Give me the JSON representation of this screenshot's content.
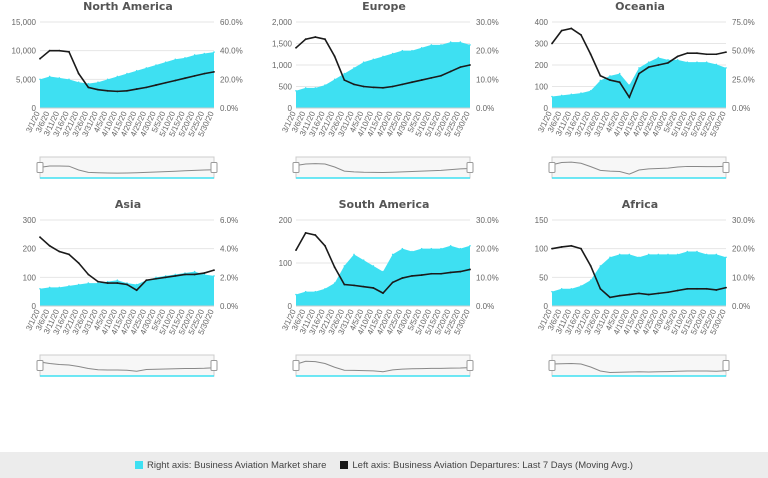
{
  "colors": {
    "share": "#3ee0f2",
    "departures": "#1a1a1a",
    "grid": "#e6e6e6",
    "axis": "#cccccc"
  },
  "legend": {
    "share_label": "Right axis: Business Aviation Market share",
    "departures_label": "Left axis: Business Aviation Departures: Last 7 Days (Moving Avg.)"
  },
  "chart_data": [
    {
      "type": "area",
      "title": "North America",
      "x_labels": [
        "3/1/20",
        "3/6/20",
        "3/11/20",
        "3/16/20",
        "3/21/20",
        "3/26/20",
        "3/31/20",
        "4/5/20",
        "4/10/20",
        "4/15/20",
        "4/20/20",
        "4/25/20",
        "4/30/20",
        "5/5/20",
        "5/10/20",
        "5/15/20",
        "5/20/20",
        "5/25/20",
        "5/30/20"
      ],
      "left_ticks": [
        "15,000",
        "10,000",
        "5,000",
        "0"
      ],
      "right_ticks": [
        "60.0%",
        "40.0%",
        "20.0%",
        "0.0%"
      ],
      "ylim_left": [
        0,
        15000
      ],
      "ylim_right": [
        0,
        60
      ],
      "series": [
        {
          "name": "Business Aviation Departures: Last 7 Days (Moving Avg.)",
          "axis": "left",
          "x": [
            "3/1/20",
            "3/6/20",
            "3/11/20",
            "3/16/20",
            "3/21/20",
            "3/26/20",
            "3/31/20",
            "4/5/20",
            "4/10/20",
            "4/15/20",
            "4/20/20",
            "4/25/20",
            "4/30/20",
            "5/5/20",
            "5/10/20",
            "5/15/20",
            "5/20/20",
            "5/25/20",
            "5/30/20"
          ],
          "values": [
            8600,
            10000,
            10000,
            9800,
            6000,
            3600,
            3200,
            3000,
            2900,
            3000,
            3300,
            3600,
            4000,
            4400,
            4800,
            5200,
            5600,
            6000,
            6300
          ]
        },
        {
          "name": "Business Aviation Market share",
          "axis": "right",
          "x": [
            "3/1/20",
            "3/6/20",
            "3/11/20",
            "3/16/20",
            "3/21/20",
            "3/26/20",
            "3/31/20",
            "4/5/20",
            "4/10/20",
            "4/15/20",
            "4/20/20",
            "4/25/20",
            "4/30/20",
            "5/5/20",
            "5/10/20",
            "5/15/20",
            "5/20/20",
            "5/25/20",
            "5/30/20"
          ],
          "values": [
            20,
            22,
            21,
            20,
            18,
            17,
            18,
            20,
            22,
            24,
            26,
            28,
            30,
            32,
            34,
            35,
            37,
            38,
            39
          ]
        }
      ]
    },
    {
      "type": "area",
      "title": "Europe",
      "x_labels": [
        "3/1/20",
        "3/6/20",
        "3/11/20",
        "3/16/20",
        "3/21/20",
        "3/26/20",
        "3/31/20",
        "4/5/20",
        "4/10/20",
        "4/15/20",
        "4/20/20",
        "4/25/20",
        "4/30/20",
        "5/5/20",
        "5/10/20",
        "5/15/20",
        "5/20/20",
        "5/25/20",
        "5/30/20"
      ],
      "left_ticks": [
        "2,000",
        "1,500",
        "1,000",
        "500",
        "0"
      ],
      "right_ticks": [
        "30.0%",
        "20.0%",
        "10.0%",
        "0.0%"
      ],
      "ylim_left": [
        0,
        2000
      ],
      "ylim_right": [
        0,
        30
      ],
      "series": [
        {
          "name": "Business Aviation Departures: Last 7 Days (Moving Avg.)",
          "axis": "left",
          "x": [
            "3/1/20",
            "3/6/20",
            "3/11/20",
            "3/16/20",
            "3/21/20",
            "3/26/20",
            "3/31/20",
            "4/5/20",
            "4/10/20",
            "4/15/20",
            "4/20/20",
            "4/25/20",
            "4/30/20",
            "5/5/20",
            "5/10/20",
            "5/15/20",
            "5/20/20",
            "5/25/20",
            "5/30/20"
          ],
          "values": [
            1400,
            1600,
            1650,
            1600,
            1200,
            650,
            550,
            500,
            480,
            470,
            500,
            550,
            600,
            650,
            700,
            750,
            850,
            950,
            1000
          ]
        },
        {
          "name": "Business Aviation Market share",
          "axis": "right",
          "x": [
            "3/1/20",
            "3/6/20",
            "3/11/20",
            "3/16/20",
            "3/21/20",
            "3/26/20",
            "3/31/20",
            "4/5/20",
            "4/10/20",
            "4/15/20",
            "4/20/20",
            "4/25/20",
            "4/30/20",
            "5/5/20",
            "5/10/20",
            "5/15/20",
            "5/20/20",
            "5/25/20",
            "5/30/20"
          ],
          "values": [
            6,
            7,
            7,
            8,
            10,
            12,
            14,
            16,
            17,
            18,
            19,
            20,
            20,
            21,
            22,
            22,
            23,
            23,
            22
          ]
        }
      ]
    },
    {
      "type": "area",
      "title": "Oceania",
      "x_labels": [
        "3/1/20",
        "3/6/20",
        "3/11/20",
        "3/16/20",
        "3/21/20",
        "3/26/20",
        "3/31/20",
        "4/5/20",
        "4/10/20",
        "4/15/20",
        "4/20/20",
        "4/25/20",
        "4/30/20",
        "5/5/20",
        "5/10/20",
        "5/15/20",
        "5/20/20",
        "5/25/20",
        "5/30/20"
      ],
      "left_ticks": [
        "400",
        "300",
        "200",
        "100",
        "0"
      ],
      "right_ticks": [
        "75.0%",
        "50.0%",
        "25.0%",
        "0.0%"
      ],
      "ylim_left": [
        0,
        400
      ],
      "ylim_right": [
        0,
        75
      ],
      "series": [
        {
          "name": "Business Aviation Departures: Last 7 Days (Moving Avg.)",
          "axis": "left",
          "x": [
            "3/1/20",
            "3/6/20",
            "3/11/20",
            "3/16/20",
            "3/21/20",
            "3/26/20",
            "3/31/20",
            "4/5/20",
            "4/10/20",
            "4/15/20",
            "4/20/20",
            "4/25/20",
            "4/30/20",
            "5/5/20",
            "5/10/20",
            "5/15/20",
            "5/20/20",
            "5/25/20",
            "5/30/20"
          ],
          "values": [
            300,
            360,
            370,
            340,
            250,
            150,
            130,
            120,
            50,
            160,
            190,
            200,
            210,
            240,
            255,
            255,
            250,
            250,
            260
          ]
        },
        {
          "name": "Business Aviation Market share",
          "axis": "right",
          "x": [
            "3/1/20",
            "3/6/20",
            "3/11/20",
            "3/16/20",
            "3/21/20",
            "3/26/20",
            "3/31/20",
            "4/5/20",
            "4/10/20",
            "4/15/20",
            "4/20/20",
            "4/25/20",
            "4/30/20",
            "5/5/20",
            "5/10/20",
            "5/15/20",
            "5/20/20",
            "5/25/20",
            "5/30/20"
          ],
          "values": [
            10,
            11,
            12,
            13,
            15,
            24,
            28,
            30,
            20,
            35,
            40,
            44,
            42,
            42,
            40,
            40,
            40,
            38,
            35
          ]
        }
      ]
    },
    {
      "type": "area",
      "title": "Asia",
      "x_labels": [
        "3/1/20",
        "3/6/20",
        "3/11/20",
        "3/16/20",
        "3/21/20",
        "3/26/20",
        "3/31/20",
        "4/5/20",
        "4/10/20",
        "4/15/20",
        "4/20/20",
        "4/25/20",
        "4/30/20",
        "5/5/20",
        "5/10/20",
        "5/15/20",
        "5/20/20",
        "5/25/20",
        "5/30/20"
      ],
      "left_ticks": [
        "300",
        "200",
        "100",
        "0"
      ],
      "right_ticks": [
        "6.0%",
        "4.0%",
        "2.0%",
        "0.0%"
      ],
      "ylim_left": [
        0,
        300
      ],
      "ylim_right": [
        0,
        6
      ],
      "series": [
        {
          "name": "Business Aviation Departures: Last 7 Days (Moving Avg.)",
          "axis": "left",
          "x": [
            "3/1/20",
            "3/6/20",
            "3/11/20",
            "3/16/20",
            "3/21/20",
            "3/26/20",
            "3/31/20",
            "4/5/20",
            "4/10/20",
            "4/15/20",
            "4/20/20",
            "4/25/20",
            "4/30/20",
            "5/5/20",
            "5/10/20",
            "5/15/20",
            "5/20/20",
            "5/25/20",
            "5/30/20"
          ],
          "values": [
            240,
            210,
            190,
            180,
            150,
            110,
            85,
            80,
            80,
            75,
            55,
            90,
            95,
            100,
            105,
            110,
            110,
            115,
            125
          ]
        },
        {
          "name": "Business Aviation Market share",
          "axis": "right",
          "x": [
            "3/1/20",
            "3/6/20",
            "3/11/20",
            "3/16/20",
            "3/21/20",
            "3/26/20",
            "3/31/20",
            "4/5/20",
            "4/10/20",
            "4/15/20",
            "4/20/20",
            "4/25/20",
            "4/30/20",
            "5/5/20",
            "5/10/20",
            "5/15/20",
            "5/20/20",
            "5/25/20",
            "5/30/20"
          ],
          "values": [
            1.2,
            1.3,
            1.3,
            1.4,
            1.5,
            1.6,
            1.6,
            1.7,
            1.8,
            1.6,
            1.5,
            1.8,
            2.0,
            2.1,
            2.2,
            2.3,
            2.4,
            2.2,
            2.1
          ]
        }
      ]
    },
    {
      "type": "area",
      "title": "South America",
      "x_labels": [
        "3/1/20",
        "3/6/20",
        "3/11/20",
        "3/16/20",
        "3/21/20",
        "3/26/20",
        "3/31/20",
        "4/5/20",
        "4/10/20",
        "4/15/20",
        "4/20/20",
        "4/25/20",
        "4/30/20",
        "5/5/20",
        "5/10/20",
        "5/15/20",
        "5/20/20",
        "5/25/20",
        "5/30/20"
      ],
      "left_ticks": [
        "200",
        "100",
        "0"
      ],
      "right_ticks": [
        "30.0%",
        "20.0%",
        "10.0%",
        "0.0%"
      ],
      "ylim_left": [
        0,
        200
      ],
      "ylim_right": [
        0,
        30
      ],
      "series": [
        {
          "name": "Business Aviation Departures: Last 7 Days (Moving Avg.)",
          "axis": "left",
          "x": [
            "3/1/20",
            "3/6/20",
            "3/11/20",
            "3/16/20",
            "3/21/20",
            "3/26/20",
            "3/31/20",
            "4/5/20",
            "4/10/20",
            "4/15/20",
            "4/20/20",
            "4/25/20",
            "4/30/20",
            "5/5/20",
            "5/10/20",
            "5/15/20",
            "5/20/20",
            "5/25/20",
            "5/30/20"
          ],
          "values": [
            130,
            170,
            165,
            140,
            90,
            50,
            48,
            45,
            42,
            30,
            55,
            65,
            70,
            72,
            75,
            75,
            78,
            80,
            85
          ]
        },
        {
          "name": "Business Aviation Market share",
          "axis": "right",
          "x": [
            "3/1/20",
            "3/6/20",
            "3/11/20",
            "3/16/20",
            "3/21/20",
            "3/26/20",
            "3/31/20",
            "4/5/20",
            "4/10/20",
            "4/15/20",
            "4/20/20",
            "4/25/20",
            "4/30/20",
            "5/5/20",
            "5/10/20",
            "5/15/20",
            "5/20/20",
            "5/25/20",
            "5/30/20"
          ],
          "values": [
            4,
            5,
            5,
            6,
            8,
            14,
            18,
            16,
            14,
            12,
            18,
            20,
            19,
            20,
            20,
            20,
            21,
            20,
            21
          ]
        }
      ]
    },
    {
      "type": "area",
      "title": "Africa",
      "x_labels": [
        "3/1/20",
        "3/6/20",
        "3/11/20",
        "3/16/20",
        "3/21/20",
        "3/26/20",
        "3/31/20",
        "4/5/20",
        "4/10/20",
        "4/15/20",
        "4/20/20",
        "4/25/20",
        "4/30/20",
        "5/5/20",
        "5/10/20",
        "5/15/20",
        "5/20/20",
        "5/25/20",
        "5/30/20"
      ],
      "left_ticks": [
        "150",
        "100",
        "50",
        "0"
      ],
      "right_ticks": [
        "30.0%",
        "20.0%",
        "10.0%",
        "0.0%"
      ],
      "ylim_left": [
        0,
        150
      ],
      "ylim_right": [
        0,
        30
      ],
      "series": [
        {
          "name": "Business Aviation Departures: Last 7 Days (Moving Avg.)",
          "axis": "left",
          "x": [
            "3/1/20",
            "3/6/20",
            "3/11/20",
            "3/16/20",
            "3/21/20",
            "3/26/20",
            "3/31/20",
            "4/5/20",
            "4/10/20",
            "4/15/20",
            "4/20/20",
            "4/25/20",
            "4/30/20",
            "5/5/20",
            "5/10/20",
            "5/15/20",
            "5/20/20",
            "5/25/20",
            "5/30/20"
          ],
          "values": [
            100,
            103,
            105,
            100,
            70,
            30,
            15,
            18,
            20,
            22,
            20,
            22,
            24,
            27,
            30,
            30,
            30,
            28,
            32
          ]
        },
        {
          "name": "Business Aviation Market share",
          "axis": "right",
          "x": [
            "3/1/20",
            "3/6/20",
            "3/11/20",
            "3/16/20",
            "3/21/20",
            "3/26/20",
            "3/31/20",
            "4/5/20",
            "4/10/20",
            "4/15/20",
            "4/20/20",
            "4/25/20",
            "4/30/20",
            "5/5/20",
            "5/10/20",
            "5/15/20",
            "5/20/20",
            "5/25/20",
            "5/30/20"
          ],
          "values": [
            5,
            6,
            6,
            7,
            9,
            14,
            17,
            18,
            18,
            17,
            18,
            18,
            18,
            18,
            19,
            19,
            18,
            18,
            17
          ]
        }
      ]
    }
  ]
}
